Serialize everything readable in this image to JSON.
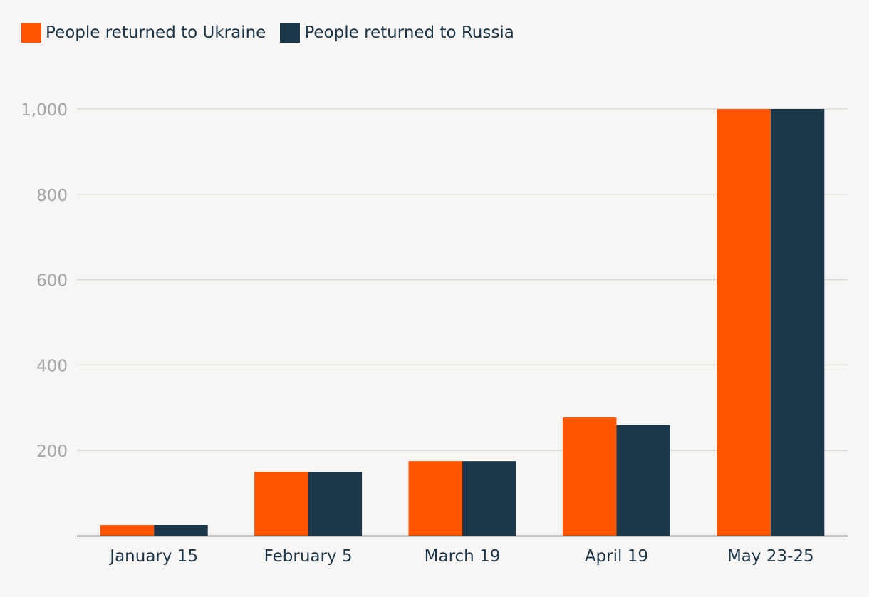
{
  "chart_data": {
    "type": "bar",
    "categories": [
      "January 15",
      "February 5",
      "March 19",
      "April 19",
      "May 23-25"
    ],
    "series": [
      {
        "name": "People returned to Ukraine",
        "color": "#ff5500",
        "values": [
          25,
          150,
          175,
          277,
          1000
        ]
      },
      {
        "name": "People returned to Russia",
        "color": "#1b3749",
        "values": [
          25,
          150,
          175,
          260,
          1000
        ]
      }
    ],
    "y_ticks": [
      "200",
      "400",
      "600",
      "800",
      "1,000"
    ],
    "ylim": [
      0,
      1000
    ],
    "grid": true,
    "legend_position": "top-left"
  }
}
